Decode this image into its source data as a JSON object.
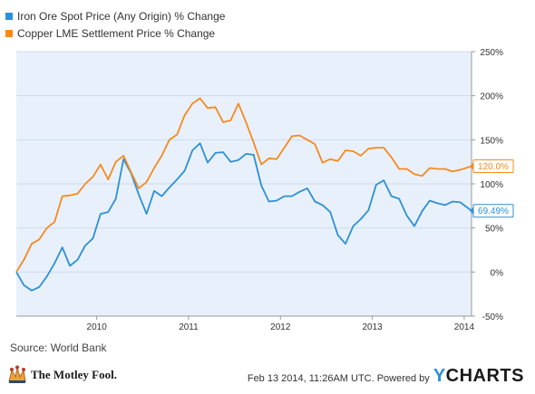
{
  "chart_data": {
    "type": "line",
    "y_ticks": [
      "250%",
      "200%",
      "150%",
      "100%",
      "50%",
      "0%",
      "-50%"
    ],
    "y_range": [
      -50,
      250
    ],
    "x_ticks": [
      "2010",
      "2011",
      "2012",
      "2013",
      "2014"
    ],
    "x_tick_positions": [
      2010,
      2011,
      2012,
      2013,
      2014
    ],
    "x_range": [
      2009.125,
      2014.08
    ],
    "grid": "horizontal",
    "legend_placement": "top-left",
    "series": [
      {
        "name": "Iron Ore Spot Price (Any Origin) % Change",
        "color": "#2e8fd8",
        "end_label": "69.49%",
        "points": [
          [
            2009.125,
            0
          ],
          [
            2009.208,
            -15
          ],
          [
            2009.292,
            -21
          ],
          [
            2009.375,
            -17
          ],
          [
            2009.458,
            -5
          ],
          [
            2009.542,
            10
          ],
          [
            2009.625,
            28
          ],
          [
            2009.708,
            7
          ],
          [
            2009.792,
            14
          ],
          [
            2009.875,
            30
          ],
          [
            2009.958,
            38
          ],
          [
            2010.042,
            66
          ],
          [
            2010.125,
            68
          ],
          [
            2010.208,
            83
          ],
          [
            2010.292,
            128
          ],
          [
            2010.375,
            112
          ],
          [
            2010.458,
            88
          ],
          [
            2010.542,
            66
          ],
          [
            2010.625,
            92
          ],
          [
            2010.708,
            86
          ],
          [
            2010.792,
            96
          ],
          [
            2010.875,
            105
          ],
          [
            2010.958,
            115
          ],
          [
            2011.042,
            138
          ],
          [
            2011.125,
            146
          ],
          [
            2011.208,
            124
          ],
          [
            2011.292,
            135
          ],
          [
            2011.375,
            136
          ],
          [
            2011.458,
            125
          ],
          [
            2011.542,
            127
          ],
          [
            2011.625,
            134
          ],
          [
            2011.708,
            133
          ],
          [
            2011.792,
            98
          ],
          [
            2011.875,
            80
          ],
          [
            2011.958,
            81
          ],
          [
            2012.042,
            86
          ],
          [
            2012.125,
            86
          ],
          [
            2012.208,
            91
          ],
          [
            2012.292,
            95
          ],
          [
            2012.375,
            80
          ],
          [
            2012.458,
            76
          ],
          [
            2012.542,
            68
          ],
          [
            2012.625,
            42
          ],
          [
            2012.708,
            32
          ],
          [
            2012.792,
            52
          ],
          [
            2012.875,
            60
          ],
          [
            2012.958,
            70
          ],
          [
            2013.042,
            99
          ],
          [
            2013.125,
            104
          ],
          [
            2013.208,
            86
          ],
          [
            2013.292,
            83
          ],
          [
            2013.375,
            64
          ],
          [
            2013.458,
            52
          ],
          [
            2013.542,
            69
          ],
          [
            2013.625,
            81
          ],
          [
            2013.708,
            78
          ],
          [
            2013.792,
            76
          ],
          [
            2013.875,
            80
          ],
          [
            2013.958,
            79
          ],
          [
            2014.08,
            69.49
          ]
        ]
      },
      {
        "name": "Copper LME Settlement Price % Change",
        "color": "#f7891f",
        "end_label": "120.0%",
        "points": [
          [
            2009.125,
            0
          ],
          [
            2009.208,
            14
          ],
          [
            2009.292,
            32
          ],
          [
            2009.375,
            37
          ],
          [
            2009.458,
            50
          ],
          [
            2009.542,
            57
          ],
          [
            2009.625,
            86
          ],
          [
            2009.708,
            87
          ],
          [
            2009.792,
            89
          ],
          [
            2009.875,
            100
          ],
          [
            2009.958,
            108
          ],
          [
            2010.042,
            122
          ],
          [
            2010.125,
            105
          ],
          [
            2010.208,
            125
          ],
          [
            2010.292,
            132
          ],
          [
            2010.375,
            113
          ],
          [
            2010.458,
            95
          ],
          [
            2010.542,
            102
          ],
          [
            2010.625,
            118
          ],
          [
            2010.708,
            132
          ],
          [
            2010.792,
            150
          ],
          [
            2010.875,
            156
          ],
          [
            2010.958,
            178
          ],
          [
            2011.042,
            191
          ],
          [
            2011.125,
            197
          ],
          [
            2011.208,
            186
          ],
          [
            2011.292,
            187
          ],
          [
            2011.375,
            170
          ],
          [
            2011.458,
            172
          ],
          [
            2011.542,
            191
          ],
          [
            2011.625,
            170
          ],
          [
            2011.708,
            147
          ],
          [
            2011.792,
            122
          ],
          [
            2011.875,
            129
          ],
          [
            2011.958,
            128
          ],
          [
            2012.042,
            141
          ],
          [
            2012.125,
            154
          ],
          [
            2012.208,
            155
          ],
          [
            2012.292,
            150
          ],
          [
            2012.375,
            145
          ],
          [
            2012.458,
            124
          ],
          [
            2012.542,
            128
          ],
          [
            2012.625,
            126
          ],
          [
            2012.708,
            138
          ],
          [
            2012.792,
            137
          ],
          [
            2012.875,
            132
          ],
          [
            2012.958,
            140
          ],
          [
            2013.042,
            141
          ],
          [
            2013.125,
            141
          ],
          [
            2013.208,
            130
          ],
          [
            2013.292,
            117
          ],
          [
            2013.375,
            117
          ],
          [
            2013.458,
            111
          ],
          [
            2013.542,
            109
          ],
          [
            2013.625,
            118
          ],
          [
            2013.708,
            117
          ],
          [
            2013.792,
            117
          ],
          [
            2013.875,
            114
          ],
          [
            2013.958,
            116
          ],
          [
            2014.08,
            120
          ]
        ]
      }
    ],
    "source": "Source: World Bank"
  },
  "footer": {
    "timestamp": "Feb 13 2014, 11:26AM UTC. Powered by",
    "brand_y": "Y",
    "brand_rest": "CHARTS"
  },
  "logo": {
    "text": "The Motley Fool."
  },
  "colors": {
    "plot_background": "#e8f1fb",
    "grid": "#cfdcea",
    "axis": "#999999"
  }
}
